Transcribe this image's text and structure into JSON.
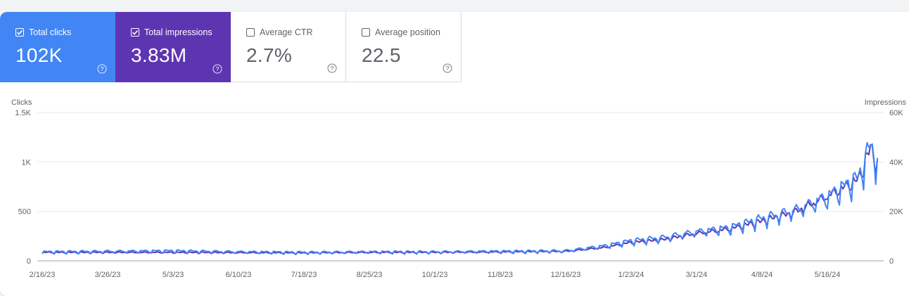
{
  "metrics": [
    {
      "label": "Total clicks",
      "value": "102K",
      "selected": true,
      "color": "#4285f4"
    },
    {
      "label": "Total impressions",
      "value": "3.83M",
      "selected": true,
      "color": "#5e35b1"
    },
    {
      "label": "Average CTR",
      "value": "2.7%",
      "selected": false
    },
    {
      "label": "Average position",
      "value": "22.5",
      "selected": false
    }
  ],
  "icons": {
    "checkbox": "checkbox-icon",
    "help": "help-circle-icon"
  },
  "chart_data": {
    "type": "line",
    "left_axis_label": "Clicks",
    "right_axis_label": "Impressions",
    "left_ticks": [
      "0",
      "500",
      "1K",
      "1.5K"
    ],
    "right_ticks": [
      "0",
      "20K",
      "40K",
      "60K"
    ],
    "x_tick_labels": [
      "2/16/23",
      "3/26/23",
      "5/3/23",
      "6/10/23",
      "7/18/23",
      "8/25/23",
      "10/1/23",
      "11/8/23",
      "12/16/23",
      "1/23/24",
      "3/1/24",
      "4/8/24",
      "5/16/24"
    ],
    "ylim_clicks": [
      0,
      1500
    ],
    "ylim_impressions": [
      0,
      60000
    ],
    "grid": true,
    "legend": "metric tiles (top)",
    "x": [
      "2/16/23",
      "3/26/23",
      "5/3/23",
      "6/10/23",
      "7/18/23",
      "8/25/23",
      "10/1/23",
      "11/8/23",
      "12/16/23",
      "1/8/24",
      "1/23/24",
      "2/10/24",
      "3/1/24",
      "3/20/24",
      "4/8/24",
      "4/27/24",
      "5/16/24",
      "6/3/24",
      "6/10/24",
      "6/14/24"
    ],
    "series": [
      {
        "metric": "clicks",
        "color": "#4285f4",
        "values": [
          90,
          95,
          100,
          90,
          85,
          90,
          90,
          95,
          100,
          150,
          200,
          230,
          290,
          330,
          420,
          500,
          640,
          830,
          1150,
          1000
        ]
      },
      {
        "metric": "impressions",
        "color": "#5e35b1",
        "values": [
          3400,
          3400,
          3400,
          3300,
          3200,
          3400,
          3400,
          3600,
          3800,
          5400,
          7400,
          8400,
          11000,
          12800,
          16000,
          19600,
          26000,
          32800,
          45600,
          38800
        ]
      }
    ]
  }
}
